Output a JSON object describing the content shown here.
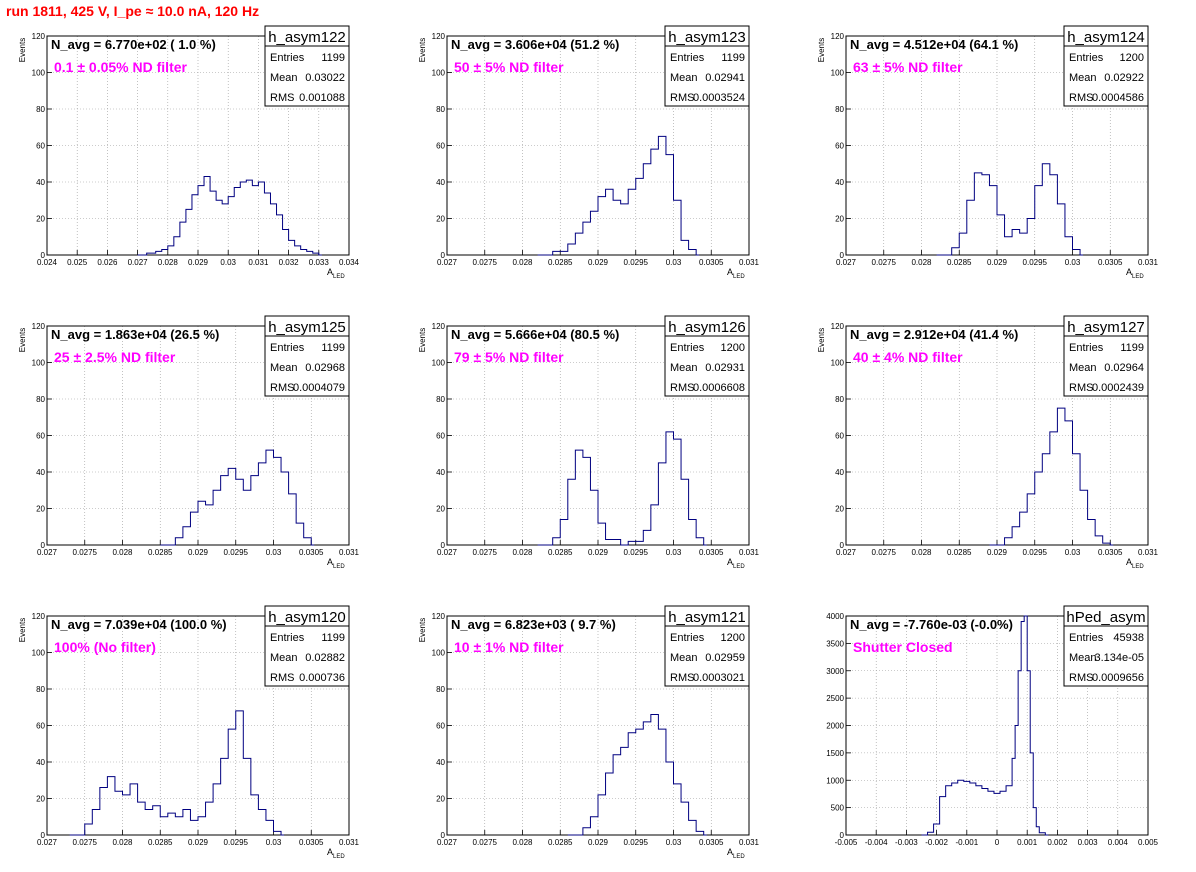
{
  "header": {
    "title": "run 1811,   425 V, I_pe ≈ 10.0 nA, 120 Hz"
  },
  "colors": {
    "histogram": "#000080",
    "label": "#ff00ff",
    "title": "#ff0000",
    "grid": "#999999"
  },
  "stat_labels": [
    "Entries",
    "Mean",
    "RMS"
  ],
  "chart_data": [
    {
      "type": "histogram",
      "name": "h_asym122",
      "navg": "N_avg = 6.770e+02 ( 1.0 %)",
      "filter": "0.1 ± 0.05% ND filter",
      "stats": [
        "1199",
        "0.03022",
        "0.001088"
      ],
      "xlabel": "A_LED",
      "ylabel": "Events",
      "xlim": [
        0.024,
        0.034
      ],
      "ylim": [
        0,
        120
      ],
      "grid": true,
      "xticks": [
        0.024,
        0.025,
        0.026,
        0.027,
        0.028,
        0.029,
        0.03,
        0.031,
        0.032,
        0.033,
        0.034
      ],
      "xticklabels": [
        "0.024",
        "0.025",
        "0.026",
        "0.027",
        "0.028",
        "0.029",
        "0.03",
        "0.031",
        "0.032",
        "0.033",
        "0.034"
      ],
      "yticks": [
        0,
        20,
        40,
        60,
        80,
        100,
        120
      ],
      "yticklabels": [
        "0",
        "20",
        "40",
        "60",
        "80",
        "100",
        "120"
      ],
      "points": [
        [
          0.027,
          0
        ],
        [
          0.0273,
          1
        ],
        [
          0.0276,
          2
        ],
        [
          0.0278,
          3
        ],
        [
          0.028,
          5
        ],
        [
          0.0282,
          10
        ],
        [
          0.0284,
          18
        ],
        [
          0.0286,
          25
        ],
        [
          0.0288,
          33
        ],
        [
          0.029,
          38
        ],
        [
          0.0292,
          43
        ],
        [
          0.0294,
          35
        ],
        [
          0.0296,
          30
        ],
        [
          0.0298,
          28
        ],
        [
          0.03,
          32
        ],
        [
          0.0302,
          37
        ],
        [
          0.0304,
          40
        ],
        [
          0.0306,
          41
        ],
        [
          0.0308,
          38
        ],
        [
          0.031,
          40
        ],
        [
          0.0312,
          34
        ],
        [
          0.0314,
          28
        ],
        [
          0.0316,
          22
        ],
        [
          0.0318,
          14
        ],
        [
          0.032,
          8
        ],
        [
          0.0322,
          5
        ],
        [
          0.0324,
          3
        ],
        [
          0.0326,
          2
        ],
        [
          0.0328,
          1
        ],
        [
          0.033,
          0
        ]
      ]
    },
    {
      "type": "histogram",
      "name": "h_asym123",
      "navg": "N_avg = 3.606e+04 (51.2 %)",
      "filter": "50 ± 5% ND filter",
      "stats": [
        "1199",
        "0.02941",
        "0.0003524"
      ],
      "xlabel": "A_LED",
      "ylabel": "Events",
      "xlim": [
        0.027,
        0.031
      ],
      "ylim": [
        0,
        120
      ],
      "grid": true,
      "xticks": [
        0.027,
        0.0275,
        0.028,
        0.0285,
        0.029,
        0.0295,
        0.03,
        0.0305,
        0.031
      ],
      "xticklabels": [
        "0.027",
        "0.0275",
        "0.028",
        "0.0285",
        "0.029",
        "0.0295",
        "0.03",
        "0.0305",
        "0.031"
      ],
      "yticks": [
        0,
        20,
        40,
        60,
        80,
        100,
        120
      ],
      "yticklabels": [
        "0",
        "20",
        "40",
        "60",
        "80",
        "100",
        "120"
      ],
      "points": [
        [
          0.0282,
          0
        ],
        [
          0.0284,
          2
        ],
        [
          0.0286,
          6
        ],
        [
          0.0287,
          12
        ],
        [
          0.0288,
          18
        ],
        [
          0.0289,
          24
        ],
        [
          0.029,
          32
        ],
        [
          0.0291,
          36
        ],
        [
          0.0292,
          30
        ],
        [
          0.0293,
          28
        ],
        [
          0.0294,
          36
        ],
        [
          0.0295,
          42
        ],
        [
          0.0296,
          50
        ],
        [
          0.0297,
          58
        ],
        [
          0.0298,
          65
        ],
        [
          0.0299,
          55
        ],
        [
          0.03,
          30
        ],
        [
          0.0301,
          8
        ],
        [
          0.0302,
          3
        ],
        [
          0.0303,
          0
        ]
      ]
    },
    {
      "type": "histogram",
      "name": "h_asym124",
      "navg": "N_avg = 4.512e+04 (64.1 %)",
      "filter": "63 ± 5% ND filter",
      "stats": [
        "1200",
        "0.02922",
        "0.0004586"
      ],
      "xlabel": "A_LED",
      "ylabel": "Events",
      "xlim": [
        0.027,
        0.031
      ],
      "ylim": [
        0,
        120
      ],
      "grid": true,
      "xticks": [
        0.027,
        0.0275,
        0.028,
        0.0285,
        0.029,
        0.0295,
        0.03,
        0.0305,
        0.031
      ],
      "xticklabels": [
        "0.027",
        "0.0275",
        "0.028",
        "0.0285",
        "0.029",
        "0.0295",
        "0.03",
        "0.0305",
        "0.031"
      ],
      "yticks": [
        0,
        20,
        40,
        60,
        80,
        100,
        120
      ],
      "yticklabels": [
        "0",
        "20",
        "40",
        "60",
        "80",
        "100",
        "120"
      ],
      "points": [
        [
          0.0282,
          0
        ],
        [
          0.0284,
          4
        ],
        [
          0.0285,
          12
        ],
        [
          0.0286,
          30
        ],
        [
          0.0287,
          45
        ],
        [
          0.0288,
          44
        ],
        [
          0.0289,
          38
        ],
        [
          0.029,
          22
        ],
        [
          0.0291,
          10
        ],
        [
          0.0292,
          14
        ],
        [
          0.0293,
          12
        ],
        [
          0.0294,
          20
        ],
        [
          0.0295,
          38
        ],
        [
          0.0296,
          50
        ],
        [
          0.0297,
          44
        ],
        [
          0.0298,
          28
        ],
        [
          0.0299,
          10
        ],
        [
          0.03,
          3
        ],
        [
          0.0301,
          0
        ]
      ]
    },
    {
      "type": "histogram",
      "name": "h_asym125",
      "navg": "N_avg = 1.863e+04 (26.5 %)",
      "filter": "25 ± 2.5% ND filter",
      "stats": [
        "1199",
        "0.02968",
        "0.0004079"
      ],
      "xlabel": "A_LED",
      "ylabel": "Events",
      "xlim": [
        0.027,
        0.031
      ],
      "ylim": [
        0,
        120
      ],
      "grid": true,
      "xticks": [
        0.027,
        0.0275,
        0.028,
        0.0285,
        0.029,
        0.0295,
        0.03,
        0.0305,
        0.031
      ],
      "xticklabels": [
        "0.027",
        "0.0275",
        "0.028",
        "0.0285",
        "0.029",
        "0.0295",
        "0.03",
        "0.0305",
        "0.031"
      ],
      "yticks": [
        0,
        20,
        40,
        60,
        80,
        100,
        120
      ],
      "yticklabels": [
        "0",
        "20",
        "40",
        "60",
        "80",
        "100",
        "120"
      ],
      "points": [
        [
          0.0285,
          0
        ],
        [
          0.0287,
          4
        ],
        [
          0.0288,
          10
        ],
        [
          0.0289,
          18
        ],
        [
          0.029,
          24
        ],
        [
          0.0291,
          22
        ],
        [
          0.0292,
          30
        ],
        [
          0.0293,
          38
        ],
        [
          0.0294,
          42
        ],
        [
          0.0295,
          36
        ],
        [
          0.0296,
          30
        ],
        [
          0.0297,
          38
        ],
        [
          0.0298,
          45
        ],
        [
          0.0299,
          52
        ],
        [
          0.03,
          48
        ],
        [
          0.0301,
          40
        ],
        [
          0.0302,
          28
        ],
        [
          0.0303,
          12
        ],
        [
          0.0304,
          4
        ],
        [
          0.0305,
          0
        ]
      ]
    },
    {
      "type": "histogram",
      "name": "h_asym126",
      "navg": "N_avg = 5.666e+04 (80.5 %)",
      "filter": "79 ± 5% ND filter",
      "stats": [
        "1200",
        "0.02931",
        "0.0006608"
      ],
      "xlabel": "A_LED",
      "ylabel": "Events",
      "xlim": [
        0.027,
        0.031
      ],
      "ylim": [
        0,
        120
      ],
      "grid": true,
      "xticks": [
        0.027,
        0.0275,
        0.028,
        0.0285,
        0.029,
        0.0295,
        0.03,
        0.0305,
        0.031
      ],
      "xticklabels": [
        "0.027",
        "0.0275",
        "0.028",
        "0.0285",
        "0.029",
        "0.0295",
        "0.03",
        "0.0305",
        "0.031"
      ],
      "yticks": [
        0,
        20,
        40,
        60,
        80,
        100,
        120
      ],
      "yticklabels": [
        "0",
        "20",
        "40",
        "60",
        "80",
        "100",
        "120"
      ],
      "points": [
        [
          0.0282,
          0
        ],
        [
          0.0284,
          4
        ],
        [
          0.0285,
          14
        ],
        [
          0.0286,
          36
        ],
        [
          0.0287,
          52
        ],
        [
          0.0288,
          48
        ],
        [
          0.0289,
          30
        ],
        [
          0.029,
          12
        ],
        [
          0.0291,
          3
        ],
        [
          0.0293,
          0
        ],
        [
          0.0294,
          2
        ],
        [
          0.0296,
          8
        ],
        [
          0.0297,
          22
        ],
        [
          0.0298,
          45
        ],
        [
          0.0299,
          62
        ],
        [
          0.03,
          58
        ],
        [
          0.0301,
          36
        ],
        [
          0.0302,
          14
        ],
        [
          0.0303,
          4
        ],
        [
          0.0304,
          0
        ]
      ]
    },
    {
      "type": "histogram",
      "name": "h_asym127",
      "navg": "N_avg = 2.912e+04 (41.4 %)",
      "filter": "40 ± 4% ND filter",
      "stats": [
        "1199",
        "0.02964",
        "0.0002439"
      ],
      "xlabel": "A_LED",
      "ylabel": "Events",
      "xlim": [
        0.027,
        0.031
      ],
      "ylim": [
        0,
        120
      ],
      "grid": true,
      "xticks": [
        0.027,
        0.0275,
        0.028,
        0.0285,
        0.029,
        0.0295,
        0.03,
        0.0305,
        0.031
      ],
      "xticklabels": [
        "0.027",
        "0.0275",
        "0.028",
        "0.0285",
        "0.029",
        "0.0295",
        "0.03",
        "0.0305",
        "0.031"
      ],
      "yticks": [
        0,
        20,
        40,
        60,
        80,
        100,
        120
      ],
      "yticklabels": [
        "0",
        "20",
        "40",
        "60",
        "80",
        "100",
        "120"
      ],
      "points": [
        [
          0.0289,
          0
        ],
        [
          0.0291,
          4
        ],
        [
          0.0292,
          10
        ],
        [
          0.0293,
          18
        ],
        [
          0.0294,
          28
        ],
        [
          0.0295,
          40
        ],
        [
          0.0296,
          50
        ],
        [
          0.0297,
          62
        ],
        [
          0.0298,
          75
        ],
        [
          0.0299,
          68
        ],
        [
          0.03,
          50
        ],
        [
          0.0301,
          30
        ],
        [
          0.0302,
          14
        ],
        [
          0.0303,
          5
        ],
        [
          0.0304,
          1
        ],
        [
          0.0305,
          0
        ]
      ]
    },
    {
      "type": "histogram",
      "name": "h_asym120",
      "navg": "N_avg = 7.039e+04 (100.0 %)",
      "filter": "100% (No filter)",
      "stats": [
        "1199",
        "0.02882",
        "0.000736"
      ],
      "xlabel": "A_LED",
      "ylabel": "Events",
      "xlim": [
        0.027,
        0.031
      ],
      "ylim": [
        0,
        120
      ],
      "grid": true,
      "xticks": [
        0.027,
        0.0275,
        0.028,
        0.0285,
        0.029,
        0.0295,
        0.03,
        0.0305,
        0.031
      ],
      "xticklabels": [
        "0.027",
        "0.0275",
        "0.028",
        "0.0285",
        "0.029",
        "0.0295",
        "0.03",
        "0.0305",
        "0.031"
      ],
      "yticks": [
        0,
        20,
        40,
        60,
        80,
        100,
        120
      ],
      "yticklabels": [
        "0",
        "20",
        "40",
        "60",
        "80",
        "100",
        "120"
      ],
      "points": [
        [
          0.0273,
          0
        ],
        [
          0.0275,
          6
        ],
        [
          0.0276,
          14
        ],
        [
          0.0277,
          26
        ],
        [
          0.0278,
          32
        ],
        [
          0.0279,
          24
        ],
        [
          0.028,
          22
        ],
        [
          0.0281,
          28
        ],
        [
          0.0282,
          18
        ],
        [
          0.0283,
          14
        ],
        [
          0.0284,
          16
        ],
        [
          0.0285,
          10
        ],
        [
          0.0286,
          12
        ],
        [
          0.0287,
          10
        ],
        [
          0.0288,
          14
        ],
        [
          0.0289,
          8
        ],
        [
          0.029,
          10
        ],
        [
          0.0291,
          18
        ],
        [
          0.0292,
          28
        ],
        [
          0.0293,
          42
        ],
        [
          0.0294,
          58
        ],
        [
          0.0295,
          68
        ],
        [
          0.0296,
          42
        ],
        [
          0.0297,
          22
        ],
        [
          0.0298,
          14
        ],
        [
          0.0299,
          8
        ],
        [
          0.03,
          2
        ],
        [
          0.0301,
          0
        ]
      ]
    },
    {
      "type": "histogram",
      "name": "h_asym121",
      "navg": "N_avg = 6.823e+03 ( 9.7 %)",
      "filter": "10 ± 1% ND filter",
      "stats": [
        "1200",
        "0.02959",
        "0.0003021"
      ],
      "xlabel": "A_LED",
      "ylabel": "Events",
      "xlim": [
        0.027,
        0.031
      ],
      "ylim": [
        0,
        120
      ],
      "grid": true,
      "xticks": [
        0.027,
        0.0275,
        0.028,
        0.0285,
        0.029,
        0.0295,
        0.03,
        0.0305,
        0.031
      ],
      "xticklabels": [
        "0.027",
        "0.0275",
        "0.028",
        "0.0285",
        "0.029",
        "0.0295",
        "0.03",
        "0.0305",
        "0.031"
      ],
      "yticks": [
        0,
        20,
        40,
        60,
        80,
        100,
        120
      ],
      "yticklabels": [
        "0",
        "20",
        "40",
        "60",
        "80",
        "100",
        "120"
      ],
      "points": [
        [
          0.0286,
          0
        ],
        [
          0.0288,
          4
        ],
        [
          0.0289,
          10
        ],
        [
          0.029,
          22
        ],
        [
          0.0291,
          34
        ],
        [
          0.0292,
          44
        ],
        [
          0.0293,
          48
        ],
        [
          0.0294,
          56
        ],
        [
          0.0295,
          58
        ],
        [
          0.0296,
          62
        ],
        [
          0.0297,
          66
        ],
        [
          0.0298,
          58
        ],
        [
          0.0299,
          40
        ],
        [
          0.03,
          28
        ],
        [
          0.0301,
          18
        ],
        [
          0.0302,
          8
        ],
        [
          0.0303,
          2
        ],
        [
          0.0304,
          0
        ]
      ]
    },
    {
      "type": "histogram",
      "name": "hPed_asym",
      "navg": "N_avg = -7.760e-03 (-0.0%)",
      "filter": "Shutter Closed",
      "stats": [
        "45938",
        "3.134e-05",
        "0.0009656"
      ],
      "xlabel": "",
      "ylabel": "",
      "xlim": [
        -0.005,
        0.005
      ],
      "ylim": [
        0,
        4000
      ],
      "grid": true,
      "xticks": [
        -0.005,
        -0.004,
        -0.003,
        -0.002,
        -0.001,
        0,
        0.001,
        0.002,
        0.003,
        0.004,
        0.005
      ],
      "xticklabels": [
        "-0.005",
        "-0.004",
        "-0.003",
        "-0.002",
        "-0.001",
        "0",
        "0.001",
        "0.002",
        "0.003",
        "0.004",
        "0.005"
      ],
      "yticks": [
        0,
        500,
        1000,
        1500,
        2000,
        2500,
        3000,
        3500,
        4000
      ],
      "yticklabels": [
        "0",
        "500",
        "1000",
        "1500",
        "2000",
        "2500",
        "3000",
        "3500",
        "4000"
      ],
      "points": [
        [
          -0.0025,
          0
        ],
        [
          -0.0023,
          50
        ],
        [
          -0.0021,
          200
        ],
        [
          -0.0019,
          700
        ],
        [
          -0.0017,
          900
        ],
        [
          -0.0015,
          950
        ],
        [
          -0.0013,
          1000
        ],
        [
          -0.0011,
          980
        ],
        [
          -0.0009,
          950
        ],
        [
          -0.0007,
          900
        ],
        [
          -0.0005,
          850
        ],
        [
          -0.0003,
          800
        ],
        [
          -0.0001,
          760
        ],
        [
          0.0001,
          800
        ],
        [
          0.0003,
          900
        ],
        [
          0.0005,
          1400
        ],
        [
          0.0006,
          2000
        ],
        [
          0.0007,
          3000
        ],
        [
          0.0008,
          3900
        ],
        [
          0.0009,
          4000
        ],
        [
          0.001,
          3000
        ],
        [
          0.0011,
          1500
        ],
        [
          0.0012,
          500
        ],
        [
          0.0013,
          150
        ],
        [
          0.0014,
          40
        ],
        [
          0.0016,
          0
        ]
      ]
    }
  ]
}
